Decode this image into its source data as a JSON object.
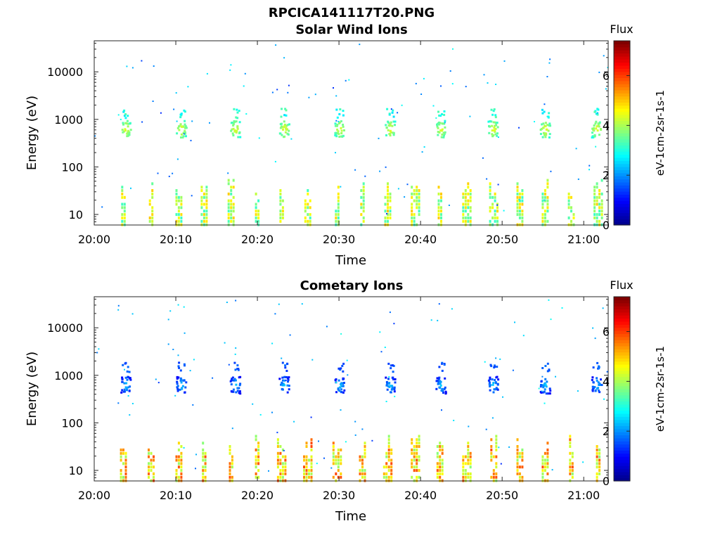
{
  "figure_title": "RPCICA141117T20.PNG",
  "colors": {
    "colormap": [
      "#00008f",
      "#0000ff",
      "#0080ff",
      "#00ffff",
      "#80ff80",
      "#ffff00",
      "#ff8000",
      "#ff0000",
      "#800000"
    ]
  },
  "chart_data": [
    {
      "type": "heatmap",
      "title": "Solar Wind Ions",
      "xlabel": "Time",
      "ylabel": "Energy (eV)",
      "xlim": [
        "20:00",
        "21:03"
      ],
      "ylim": [
        6,
        45000
      ],
      "yscale": "log",
      "xticks": [
        "20:00",
        "20:10",
        "20:20",
        "20:30",
        "20:40",
        "20:50",
        "21:00"
      ],
      "yticks": [
        "10",
        "100",
        "1000",
        "10000"
      ],
      "colorbar": {
        "label": "Flux",
        "units": "eV-1cm-2sr-1s-1",
        "clim": [
          0,
          7.4
        ],
        "ticks": [
          "0",
          "2",
          "4",
          "6"
        ]
      },
      "sweep_times_min": [
        3.8,
        10.6,
        17.2,
        23.2,
        30.0,
        36.2,
        42.4,
        48.8,
        55.2,
        61.5
      ],
      "low_energy_times_min": [
        3.6,
        7.0,
        10.4,
        13.5,
        16.8,
        20.0,
        23.0,
        26.2,
        29.8,
        32.9,
        36.0,
        39.4,
        42.4,
        45.7,
        49.0,
        52.2,
        55.3,
        58.5,
        61.8
      ],
      "proton_peak_energy_eV": 650,
      "proton_peak_flux": 4.6,
      "alpha_energy_eV": 1400,
      "alpha_flux": 3.2,
      "low_energy_flux": 4.2
    },
    {
      "type": "heatmap",
      "title": "Cometary Ions",
      "xlabel": "Time",
      "ylabel": "Energy (eV)",
      "xlim": [
        "20:00",
        "21:03"
      ],
      "ylim": [
        6,
        45000
      ],
      "yscale": "log",
      "xticks": [
        "20:00",
        "20:10",
        "20:20",
        "20:30",
        "20:40",
        "20:50",
        "21:00"
      ],
      "yticks": [
        "10",
        "100",
        "1000",
        "10000"
      ],
      "colorbar": {
        "label": "Flux",
        "units": "eV-1cm-2sr-1s-1",
        "clim": [
          0,
          7.4
        ],
        "ticks": [
          "0",
          "2",
          "4",
          "6"
        ]
      },
      "sweep_times_min": [
        3.8,
        10.6,
        17.2,
        23.2,
        30.0,
        36.2,
        42.4,
        48.8,
        55.2,
        61.5
      ],
      "low_energy_times_min": [
        3.6,
        7.0,
        10.4,
        13.5,
        16.8,
        20.0,
        23.0,
        26.2,
        29.8,
        32.9,
        36.0,
        39.4,
        42.4,
        45.7,
        49.0,
        52.2,
        55.3,
        58.5,
        61.8
      ],
      "proton_peak_energy_eV": 650,
      "proton_peak_flux": 2.5,
      "alpha_energy_eV": 1550,
      "alpha_flux": 1.6,
      "low_energy_flux": 5.0
    }
  ]
}
